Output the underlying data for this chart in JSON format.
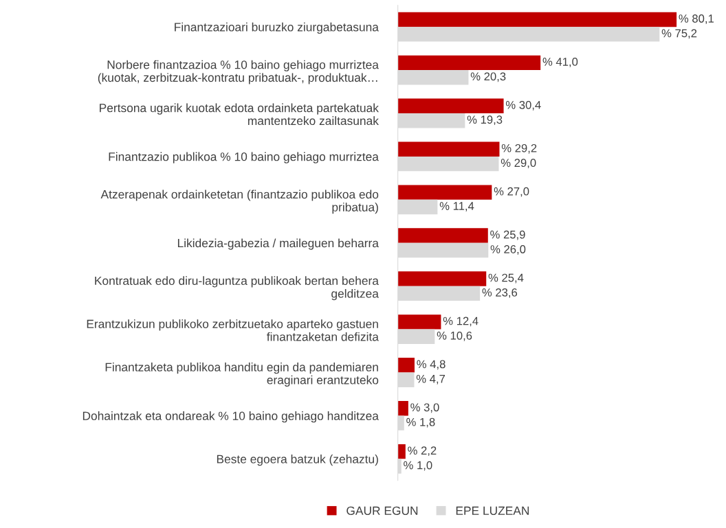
{
  "chart_data": {
    "type": "bar",
    "orientation": "horizontal",
    "data_labels": true,
    "legend": "bottom",
    "grid": false,
    "categories": [
      "Finantzazioari buruzko ziurgabetasuna",
      "Norbere finantzazioa % 10 baino gehiago murriztea\n(kuotak, zerbitzuak-kontratu pribatuak-, produktuak…",
      "Pertsona ugarik kuotak edota ordainketa partekatuak\nmantentzeko zailtasunak",
      "Finantzazio publikoa % 10 baino gehiago murriztea",
      "Atzerapenak ordainketetan (finantzazio publikoa edo\npribatua)",
      "Likidezia-gabezia / maileguen beharra",
      "Kontratuak edo diru-laguntza publikoak bertan behera\ngelditzea",
      "Erantzukizun publikoko zerbitzuetako aparteko gastuen\nfinantzaketan defizita",
      "Finantzaketa publikoa handitu egin da pandemiaren\neraginari erantzuteko",
      "Dohaintzak eta ondareak % 10 baino gehiago handitzea",
      "Beste egoera batzuk (zehaztu)"
    ],
    "series": [
      {
        "name": "GAUR EGUN",
        "color": "#c00000",
        "values": [
          80.1,
          41.0,
          30.4,
          29.2,
          27.0,
          25.9,
          25.4,
          12.4,
          4.8,
          3.0,
          2.2
        ],
        "value_labels": [
          "% 80,1",
          "% 41,0",
          "% 30,4",
          "% 29,2",
          "% 27,0",
          "% 25,9",
          "% 25,4",
          "% 12,4",
          "% 4,8",
          "% 3,0",
          "% 2,2"
        ]
      },
      {
        "name": "EPE LUZEAN",
        "color": "#d9d9d9",
        "values": [
          75.2,
          20.3,
          19.3,
          29.0,
          11.4,
          26.0,
          23.6,
          10.6,
          4.7,
          1.8,
          1.0
        ],
        "value_labels": [
          "% 75,2",
          "% 20,3",
          "% 19,3",
          "% 29,0",
          "% 11,4",
          "% 26,0",
          "% 23,6",
          "% 10,6",
          "% 4,7",
          "% 1,8",
          "% 1,0"
        ]
      }
    ]
  }
}
